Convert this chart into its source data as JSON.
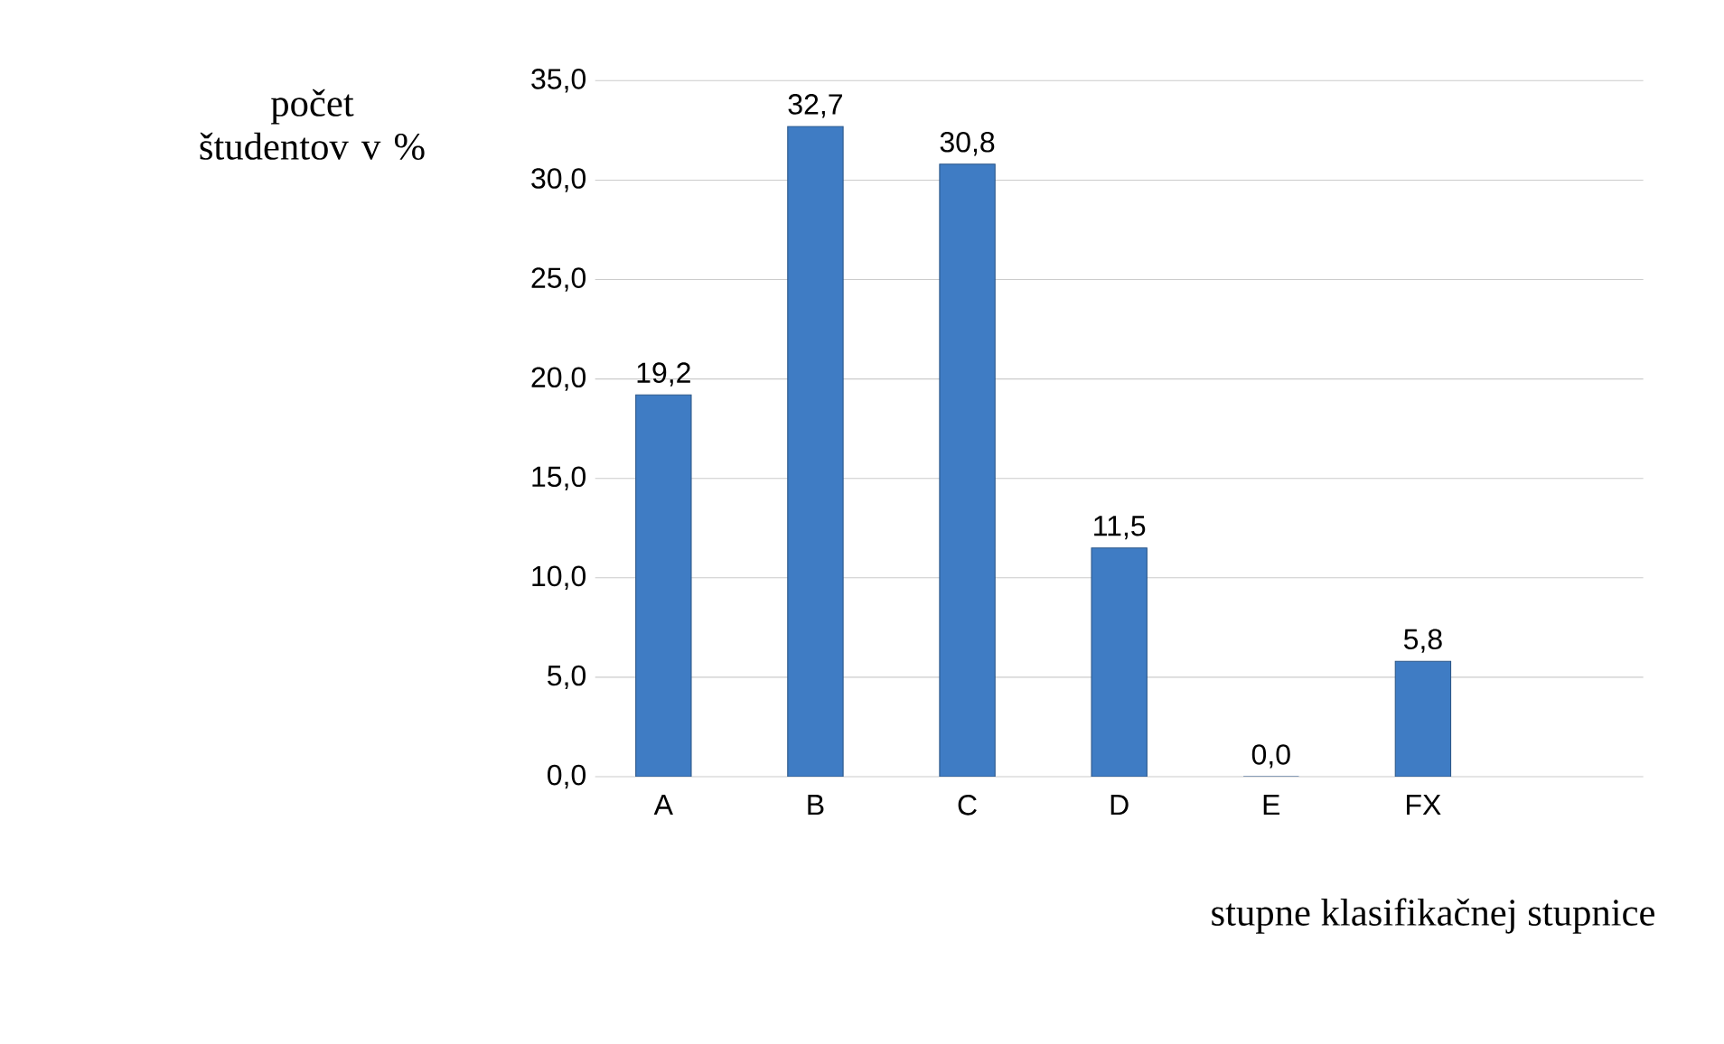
{
  "chart_data": {
    "type": "bar",
    "xlabel": "stupne klasifikačnej stupnice",
    "ylabel": "počet študentov v %",
    "categories": [
      "A",
      "B",
      "C",
      "D",
      "E",
      "FX"
    ],
    "values": [
      19.2,
      32.7,
      30.8,
      11.5,
      0.0,
      5.8
    ],
    "value_labels": [
      "19,2",
      "32,7",
      "30,8",
      "11,5",
      "0,0",
      "5,8"
    ],
    "color": "#3f7cc4",
    "ylim": [
      0,
      35
    ],
    "yticks": [
      {
        "value": 0,
        "label": "0,0"
      },
      {
        "value": 5,
        "label": "5,0"
      },
      {
        "value": 10,
        "label": "10,0"
      },
      {
        "value": 15,
        "label": "15,0"
      },
      {
        "value": 20,
        "label": "20,0"
      },
      {
        "value": 25,
        "label": "25,0"
      },
      {
        "value": 30,
        "label": "30,0"
      },
      {
        "value": 35,
        "label": "35,0"
      }
    ],
    "grid": "y"
  }
}
